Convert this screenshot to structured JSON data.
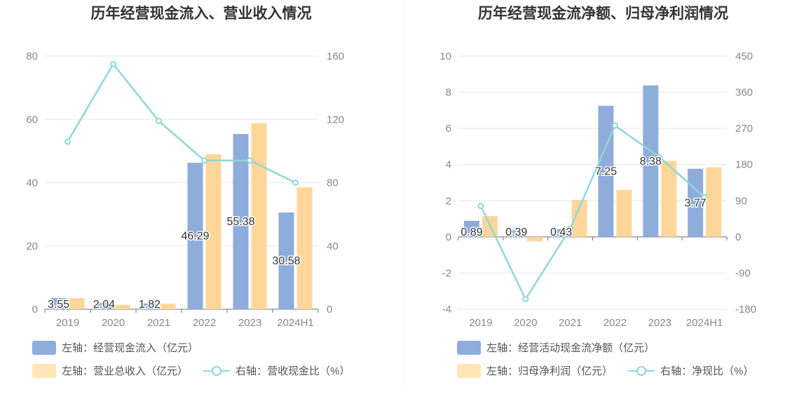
{
  "chart_data": [
    {
      "type": "bar",
      "title": "历年经营现金流入、营业收入情况",
      "categories": [
        "2019",
        "2020",
        "2021",
        "2022",
        "2023",
        "2024H1"
      ],
      "left_axis": {
        "min": 0,
        "max": 80,
        "ticks": [
          "0",
          "20",
          "40",
          "60",
          "80"
        ]
      },
      "right_axis": {
        "min": 0,
        "max": 160,
        "ticks": [
          "0",
          "40",
          "80",
          "120",
          "160"
        ]
      },
      "series": [
        {
          "name": "左轴：经营现金流入（亿元）",
          "kind": "bar",
          "axis": "left",
          "color": "#8eaddb",
          "values": [
            3.55,
            2.04,
            1.82,
            46.29,
            55.38,
            30.58
          ],
          "labels": [
            "3.55",
            "2.04",
            "1.82",
            "46.29",
            "55.38",
            "30.58"
          ]
        },
        {
          "name": "左轴：营业总收入（亿元）",
          "kind": "bar",
          "axis": "left",
          "color": "#ffd699",
          "values": [
            3.5,
            1.4,
            1.7,
            49.0,
            58.8,
            38.5
          ]
        },
        {
          "name": "右轴：营收现金比（%）",
          "kind": "line",
          "axis": "right",
          "color": "#8fd8d8",
          "values": [
            106,
            155,
            119,
            94,
            94,
            80
          ]
        }
      ],
      "legend": {
        "placement": "bottom-left"
      }
    },
    {
      "type": "bar",
      "title": "历年经营现金流净额、归母净利润情况",
      "categories": [
        "2019",
        "2020",
        "2021",
        "2022",
        "2023",
        "2024H1"
      ],
      "left_axis": {
        "min": -4,
        "max": 10,
        "ticks": [
          "-4",
          "-2",
          "0",
          "2",
          "4",
          "6",
          "8",
          "10"
        ]
      },
      "right_axis": {
        "min": -180,
        "max": 450,
        "ticks": [
          "-180",
          "-90",
          "0",
          "90",
          "180",
          "270",
          "360",
          "450"
        ]
      },
      "series": [
        {
          "name": "左轴：经营活动现金流净额（亿元）",
          "kind": "bar",
          "axis": "left",
          "color": "#8eaddb",
          "values": [
            0.89,
            0.39,
            0.43,
            7.25,
            8.38,
            3.77
          ],
          "labels": [
            "0.89",
            "0.39",
            "0.43",
            "7.25",
            "8.38",
            "3.77"
          ]
        },
        {
          "name": "左轴：归母净利润（亿元）",
          "kind": "bar",
          "axis": "left",
          "color": "#ffd699",
          "values": [
            1.15,
            -0.25,
            2.05,
            2.6,
            4.2,
            3.85
          ]
        },
        {
          "name": "右轴：净现比（%）",
          "kind": "line",
          "axis": "right",
          "color": "#8fd8d8",
          "values": [
            77,
            -155,
            21,
            277,
            198,
            99
          ]
        }
      ],
      "legend": {
        "placement": "bottom-left"
      }
    }
  ]
}
